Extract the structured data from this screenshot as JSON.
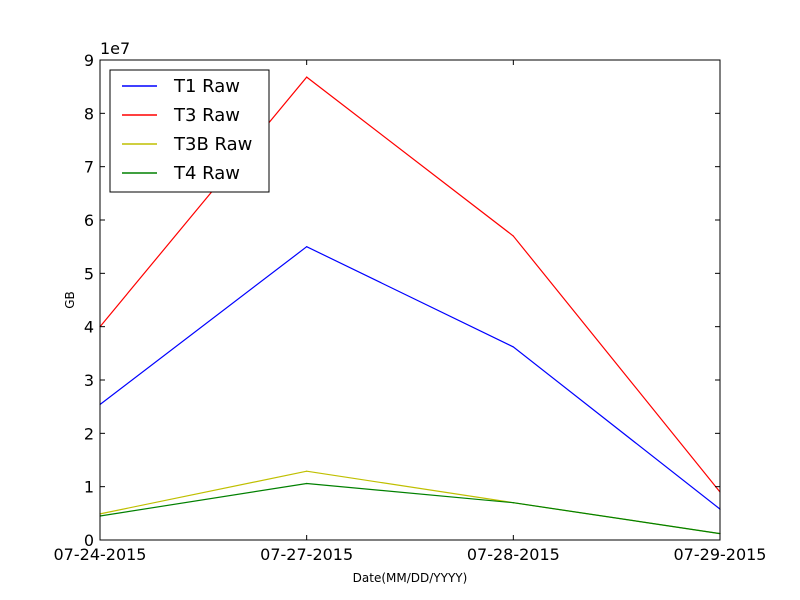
{
  "chart_data": {
    "type": "line",
    "x": [
      "07-24-2015",
      "07-27-2015",
      "07-28-2015",
      "07-29-2015"
    ],
    "xlabel": "Date(MM/DD/YYYY)",
    "ylabel": "GB",
    "ylim": [
      0,
      90000000
    ],
    "y_ticks": [
      0,
      1,
      2,
      3,
      4,
      5,
      6,
      7,
      8,
      9
    ],
    "y_offset_label": "1e7",
    "grid": false,
    "legend_position": "upper-left",
    "series": [
      {
        "name": "T1 Raw",
        "color": "#0000ff",
        "values": [
          25400000,
          55000000,
          36200000,
          5800000
        ]
      },
      {
        "name": "T3 Raw",
        "color": "#ff0000",
        "values": [
          40000000,
          86800000,
          57000000,
          9000000
        ]
      },
      {
        "name": "T3B Raw",
        "color": "#bfbf00",
        "values": [
          4900000,
          12900000,
          7000000,
          1200000
        ]
      },
      {
        "name": "T4 Raw",
        "color": "#008000",
        "values": [
          4500000,
          10600000,
          7000000,
          1200000
        ]
      }
    ]
  }
}
